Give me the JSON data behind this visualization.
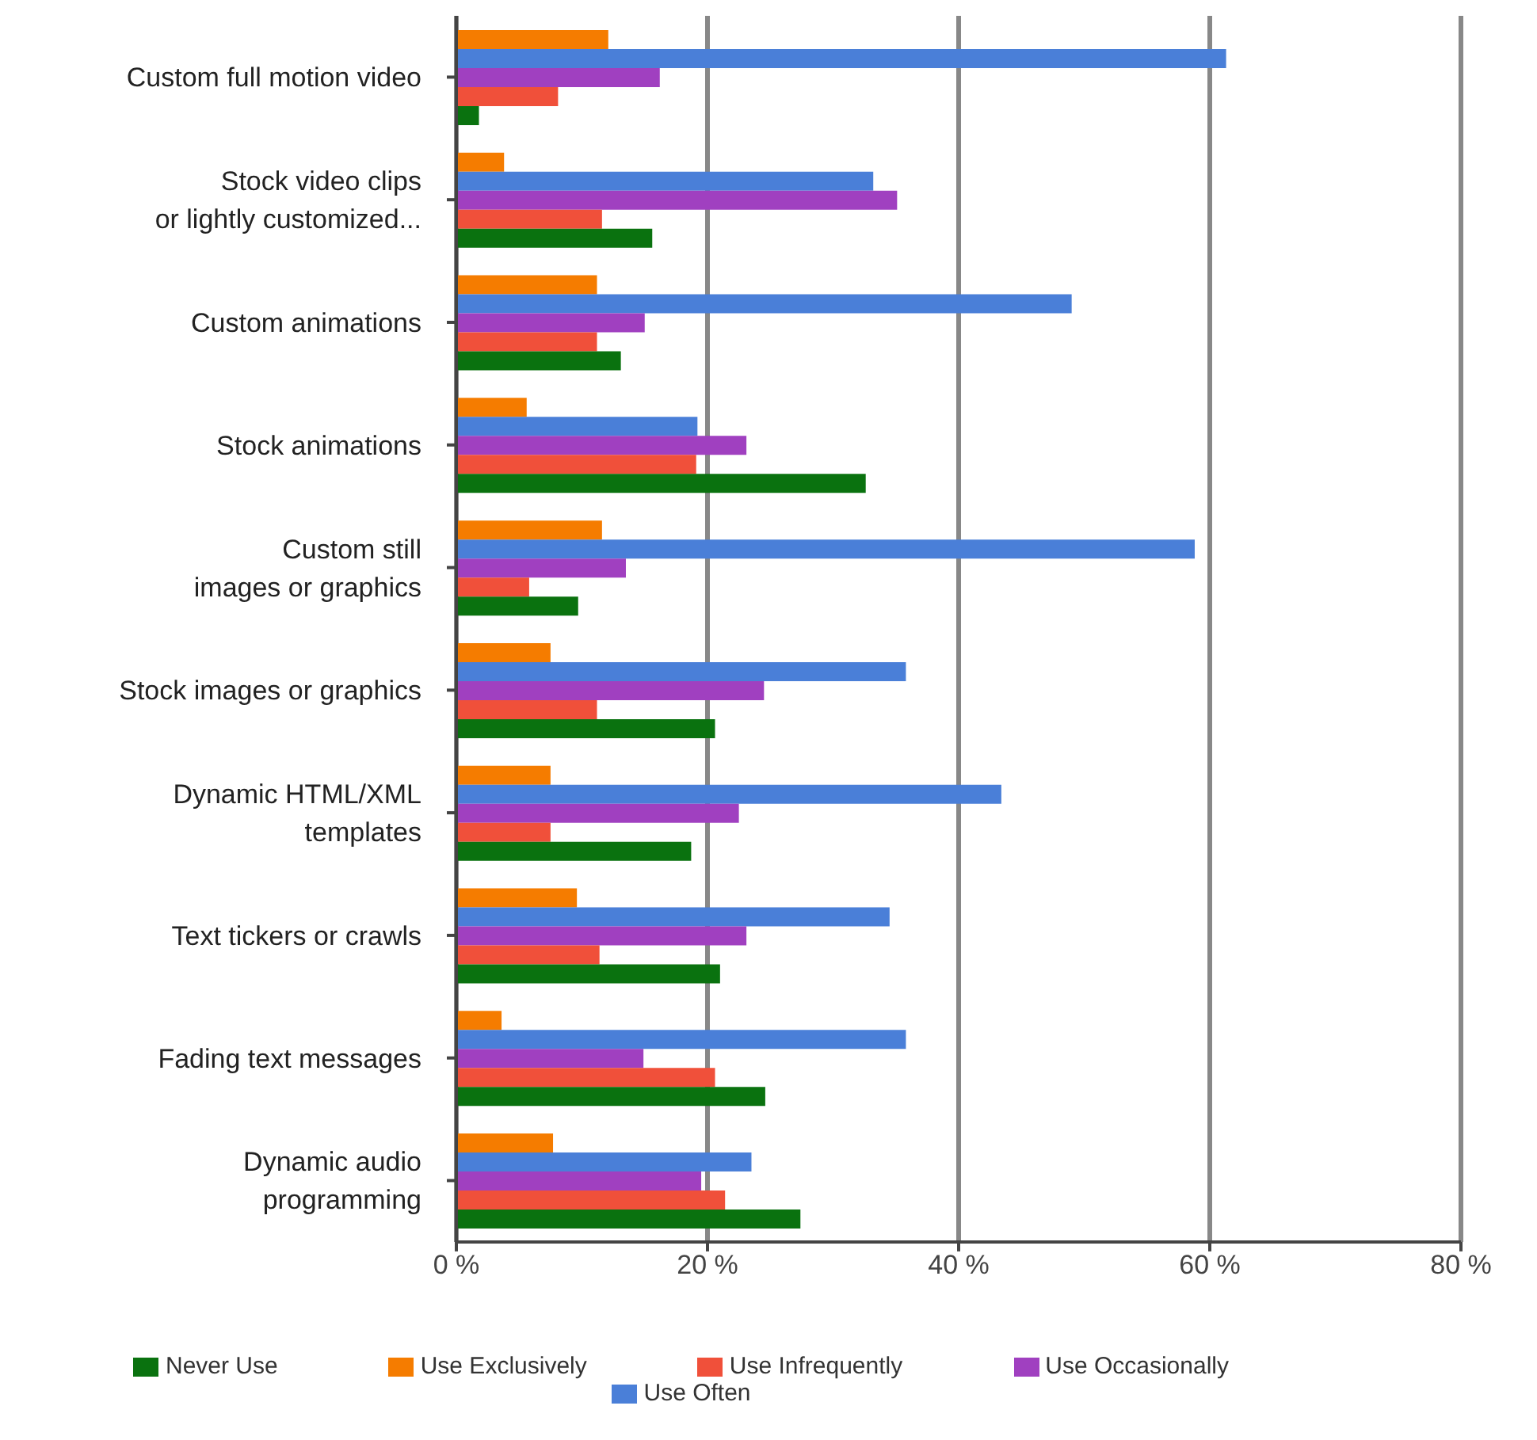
{
  "chart_data": {
    "type": "bar",
    "orientation": "horizontal",
    "categories": [
      "Custom full motion video",
      "Stock video clips\nor lightly customized...",
      "Custom animations",
      "Stock animations",
      "Custom still\nimages or graphics",
      "Stock images or graphics",
      "Dynamic HTML/XML\ntemplates",
      "Text tickers or crawls",
      "Fading text messages",
      "Dynamic audio\nprogramming"
    ],
    "series": [
      {
        "name": "Use Exclusively",
        "color": "#f57c00",
        "values": [
          12.1,
          3.8,
          11.2,
          5.6,
          11.6,
          7.5,
          7.5,
          9.6,
          3.6,
          7.7
        ]
      },
      {
        "name": "Use Often",
        "color": "#4a7fd8",
        "values": [
          61.3,
          33.2,
          49.0,
          19.2,
          58.8,
          35.8,
          43.4,
          34.5,
          35.8,
          23.5
        ]
      },
      {
        "name": "Use Occasionally",
        "color": "#a040c0",
        "values": [
          16.2,
          35.1,
          15.0,
          23.1,
          13.5,
          24.5,
          22.5,
          23.1,
          14.9,
          19.5
        ]
      },
      {
        "name": "Use Infrequently",
        "color": "#f0503a",
        "values": [
          8.1,
          11.6,
          11.2,
          19.1,
          5.8,
          11.2,
          7.5,
          11.4,
          20.6,
          21.4
        ]
      },
      {
        "name": "Never Use",
        "color": "#0a720f",
        "values": [
          1.8,
          15.6,
          13.1,
          32.6,
          9.7,
          20.6,
          18.7,
          21.0,
          24.6,
          27.4
        ]
      }
    ],
    "xlim": [
      0,
      80
    ],
    "xticks": [
      {
        "value": 0,
        "label": "0 %"
      },
      {
        "value": 20,
        "label": "20 %"
      },
      {
        "value": 40,
        "label": "40 %"
      },
      {
        "value": 60,
        "label": "60 %"
      },
      {
        "value": 80,
        "label": "80 %"
      }
    ],
    "grid": "x",
    "legend": "bottom"
  }
}
